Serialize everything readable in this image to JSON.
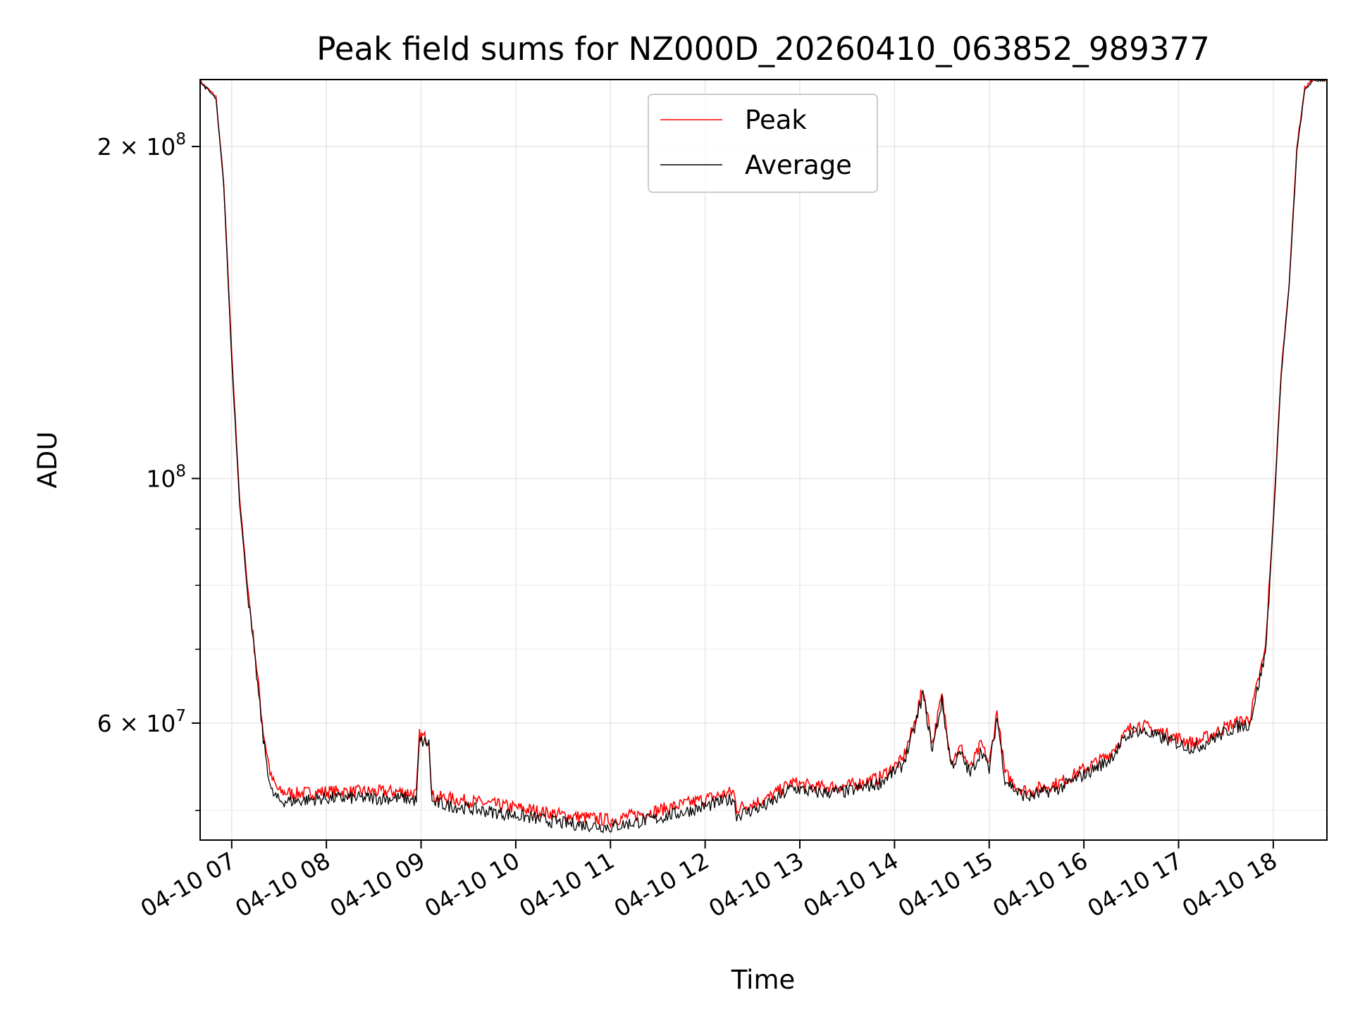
{
  "chart_data": {
    "type": "line",
    "title": "Peak field sums for NZ000D_20260410_063852_989377",
    "xlabel": "Time",
    "ylabel": "ADU",
    "y_scale": "log",
    "grid": true,
    "legend_placement": "top-center",
    "xlim": [
      "2026-04-10T06:40",
      "2026-04-10T18:34"
    ],
    "ylim": [
      47000000,
      230000000
    ],
    "x_ticks": [
      {
        "value": "2026-04-10T07:00",
        "label": "04-10 07"
      },
      {
        "value": "2026-04-10T08:00",
        "label": "04-10 08"
      },
      {
        "value": "2026-04-10T09:00",
        "label": "04-10 09"
      },
      {
        "value": "2026-04-10T10:00",
        "label": "04-10 10"
      },
      {
        "value": "2026-04-10T11:00",
        "label": "04-10 11"
      },
      {
        "value": "2026-04-10T12:00",
        "label": "04-10 12"
      },
      {
        "value": "2026-04-10T13:00",
        "label": "04-10 13"
      },
      {
        "value": "2026-04-10T14:00",
        "label": "04-10 14"
      },
      {
        "value": "2026-04-10T15:00",
        "label": "04-10 15"
      },
      {
        "value": "2026-04-10T16:00",
        "label": "04-10 16"
      },
      {
        "value": "2026-04-10T17:00",
        "label": "04-10 17"
      },
      {
        "value": "2026-04-10T18:00",
        "label": "04-10 18"
      }
    ],
    "y_major_ticks": [
      {
        "value": 60000000,
        "base": "6 × 10",
        "exp": "7"
      },
      {
        "value": 100000000,
        "base": "10",
        "exp": "8"
      },
      {
        "value": 200000000,
        "base": "2 × 10",
        "exp": "8"
      }
    ],
    "y_minor_ticks": [
      50000000,
      70000000,
      80000000,
      90000000
    ],
    "series": [
      {
        "name": "Peak",
        "color": "#ff0000",
        "x": [
          "2026-04-10T06:40",
          "2026-04-10T06:50",
          "2026-04-10T06:55",
          "2026-04-10T07:00",
          "2026-04-10T07:05",
          "2026-04-10T07:10",
          "2026-04-10T07:15",
          "2026-04-10T07:20",
          "2026-04-10T07:25",
          "2026-04-10T07:30",
          "2026-04-10T07:40",
          "2026-04-10T08:00",
          "2026-04-10T08:30",
          "2026-04-10T08:50",
          "2026-04-10T08:57",
          "2026-04-10T08:59",
          "2026-04-10T09:05",
          "2026-04-10T09:07",
          "2026-04-10T09:30",
          "2026-04-10T10:00",
          "2026-04-10T10:30",
          "2026-04-10T11:00",
          "2026-04-10T11:30",
          "2026-04-10T12:00",
          "2026-04-10T12:18",
          "2026-04-10T12:20",
          "2026-04-10T12:40",
          "2026-04-10T12:55",
          "2026-04-10T13:10",
          "2026-04-10T13:30",
          "2026-04-10T13:50",
          "2026-04-10T14:05",
          "2026-04-10T14:12",
          "2026-04-10T14:18",
          "2026-04-10T14:24",
          "2026-04-10T14:30",
          "2026-04-10T14:36",
          "2026-04-10T14:42",
          "2026-04-10T14:48",
          "2026-04-10T14:55",
          "2026-04-10T15:00",
          "2026-04-10T15:05",
          "2026-04-10T15:10",
          "2026-04-10T15:18",
          "2026-04-10T15:25",
          "2026-04-10T15:30",
          "2026-04-10T15:45",
          "2026-04-10T16:00",
          "2026-04-10T16:15",
          "2026-04-10T16:30",
          "2026-04-10T16:35",
          "2026-04-10T16:50",
          "2026-04-10T17:10",
          "2026-04-10T17:25",
          "2026-04-10T17:35",
          "2026-04-10T17:45",
          "2026-04-10T17:55",
          "2026-04-10T18:00",
          "2026-04-10T18:05",
          "2026-04-10T18:10",
          "2026-04-10T18:15",
          "2026-04-10T18:20",
          "2026-04-10T18:25",
          "2026-04-10T18:34"
        ],
        "y": [
          229000000,
          222000000,
          185000000,
          130000000,
          96000000,
          80000000,
          69000000,
          59000000,
          53500000,
          52000000,
          51800000,
          52000000,
          52000000,
          52000000,
          51700000,
          58500000,
          58000000,
          51500000,
          51000000,
          50300000,
          49500000,
          49000000,
          50000000,
          51200000,
          52000000,
          50200000,
          51300000,
          53000000,
          52500000,
          52600000,
          53500000,
          55500000,
          59500000,
          64500000,
          57500000,
          63500000,
          55500000,
          57000000,
          54500000,
          57500000,
          55000000,
          61500000,
          54000000,
          52500000,
          52000000,
          52300000,
          53000000,
          54500000,
          56000000,
          59500000,
          59800000,
          58800000,
          57500000,
          59000000,
          60000000,
          60500000,
          70000000,
          92000000,
          125000000,
          150000000,
          200000000,
          226000000,
          230000000,
          230000000
        ]
      },
      {
        "name": "Average",
        "color": "#000000",
        "x": [
          "2026-04-10T06:40",
          "2026-04-10T06:50",
          "2026-04-10T06:55",
          "2026-04-10T07:00",
          "2026-04-10T07:05",
          "2026-04-10T07:10",
          "2026-04-10T07:15",
          "2026-04-10T07:20",
          "2026-04-10T07:25",
          "2026-04-10T07:30",
          "2026-04-10T07:40",
          "2026-04-10T08:00",
          "2026-04-10T08:30",
          "2026-04-10T08:50",
          "2026-04-10T08:57",
          "2026-04-10T08:59",
          "2026-04-10T09:05",
          "2026-04-10T09:07",
          "2026-04-10T09:30",
          "2026-04-10T10:00",
          "2026-04-10T10:30",
          "2026-04-10T11:00",
          "2026-04-10T11:30",
          "2026-04-10T12:00",
          "2026-04-10T12:18",
          "2026-04-10T12:20",
          "2026-04-10T12:40",
          "2026-04-10T12:55",
          "2026-04-10T13:10",
          "2026-04-10T13:30",
          "2026-04-10T13:50",
          "2026-04-10T14:05",
          "2026-04-10T14:12",
          "2026-04-10T14:18",
          "2026-04-10T14:24",
          "2026-04-10T14:30",
          "2026-04-10T14:36",
          "2026-04-10T14:42",
          "2026-04-10T14:48",
          "2026-04-10T14:55",
          "2026-04-10T15:00",
          "2026-04-10T15:05",
          "2026-04-10T15:10",
          "2026-04-10T15:18",
          "2026-04-10T15:25",
          "2026-04-10T15:30",
          "2026-04-10T15:45",
          "2026-04-10T16:00",
          "2026-04-10T16:15",
          "2026-04-10T16:30",
          "2026-04-10T16:35",
          "2026-04-10T16:50",
          "2026-04-10T17:10",
          "2026-04-10T17:25",
          "2026-04-10T17:35",
          "2026-04-10T17:45",
          "2026-04-10T17:55",
          "2026-04-10T18:00",
          "2026-04-10T18:05",
          "2026-04-10T18:10",
          "2026-04-10T18:15",
          "2026-04-10T18:20",
          "2026-04-10T18:25",
          "2026-04-10T18:34"
        ],
        "y": [
          229000000,
          221000000,
          184000000,
          128000000,
          95000000,
          79000000,
          68000000,
          58000000,
          52000000,
          51000000,
          51000000,
          51300000,
          51300000,
          51300000,
          51000000,
          57800000,
          57500000,
          50800000,
          50200000,
          49500000,
          48700000,
          48300000,
          49200000,
          50400000,
          51300000,
          49500000,
          50600000,
          52400000,
          51900000,
          52000000,
          52900000,
          54900000,
          58800000,
          63800000,
          56800000,
          62800000,
          54900000,
          56300000,
          53900000,
          56800000,
          54400000,
          60800000,
          53400000,
          51900000,
          51400000,
          51700000,
          52400000,
          53900000,
          55400000,
          58900000,
          59100000,
          58100000,
          56900000,
          58400000,
          59400000,
          59900000,
          69300000,
          91000000,
          124000000,
          149000000,
          198000000,
          225000000,
          229500000,
          230000000
        ]
      }
    ]
  }
}
